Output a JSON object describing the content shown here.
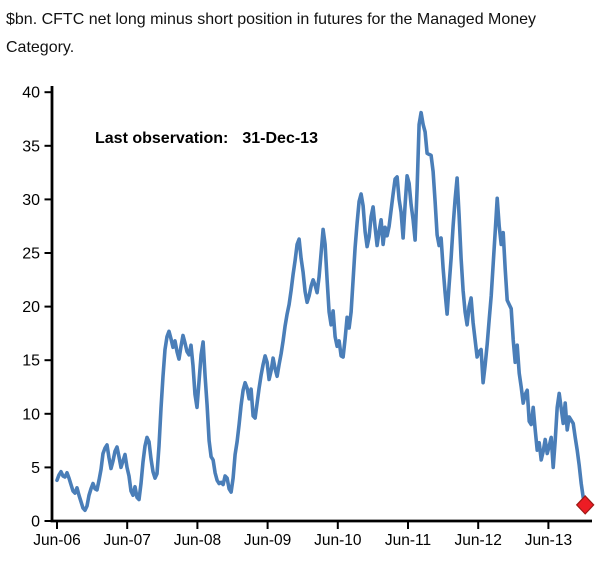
{
  "header": {
    "title_line1": "$bn. CFTC net long minus short position in futures for the Managed Money",
    "title_line2": "Category."
  },
  "annotation": {
    "label": "Last observation:",
    "value": "31-Dec-13"
  },
  "colors": {
    "line": "#4A7EB8",
    "marker_fill": "#ED1C24",
    "marker_stroke": "#9E1A15",
    "axis": "#000000",
    "text": "#000000"
  },
  "chart_data": {
    "type": "line",
    "title": "$bn. CFTC net long minus short position in futures for the Managed Money Category.",
    "xlabel": "",
    "ylabel": "$bn",
    "ylim": [
      0,
      40
    ],
    "y_ticks": [
      0,
      5,
      10,
      15,
      20,
      25,
      30,
      35,
      40
    ],
    "x_tick_labels": [
      "Jun-06",
      "Jun-07",
      "Jun-08",
      "Jun-09",
      "Jun-10",
      "Jun-11",
      "Jun-12",
      "Jun-13"
    ],
    "x_tick_values": [
      2006.42,
      2007.42,
      2008.42,
      2009.42,
      2010.42,
      2011.42,
      2012.42,
      2013.42
    ],
    "grid": false,
    "legend": "none",
    "last_observation": {
      "date": "31-Dec-13",
      "value": 1.5,
      "marker": "red-diamond"
    },
    "series": [
      {
        "name": "CFTC Managed Money net long minus short position ($bn)",
        "color": "#4A7EB8",
        "x_start": 2006.42,
        "x_step": 0.0285,
        "values": [
          3.8,
          4.3,
          4.6,
          4.2,
          4.1,
          4.5,
          4.0,
          3.4,
          2.8,
          2.6,
          3.1,
          2.4,
          1.8,
          1.2,
          1.0,
          1.4,
          2.4,
          3.0,
          3.5,
          3.0,
          2.9,
          3.8,
          4.8,
          6.3,
          6.8,
          7.1,
          5.9,
          4.9,
          5.6,
          6.5,
          6.9,
          6.0,
          5.0,
          5.6,
          6.2,
          5.0,
          4.2,
          2.8,
          2.4,
          3.2,
          2.2,
          2.0,
          3.5,
          5.5,
          7.0,
          7.8,
          7.4,
          5.8,
          4.6,
          4.0,
          4.4,
          7.0,
          10.5,
          13.5,
          16.0,
          17.2,
          17.7,
          17.0,
          16.2,
          16.8,
          15.8,
          15.1,
          16.3,
          17.3,
          16.6,
          15.8,
          15.5,
          16.4,
          14.5,
          11.8,
          10.6,
          13.0,
          15.5,
          16.7,
          13.5,
          10.8,
          7.5,
          6.0,
          5.7,
          4.5,
          3.8,
          3.5,
          3.6,
          3.4,
          4.2,
          4.0,
          3.0,
          2.7,
          4.0,
          6.2,
          7.4,
          9.0,
          10.8,
          12.2,
          12.9,
          12.4,
          11.4,
          12.3,
          9.8,
          9.6,
          11.0,
          12.4,
          13.6,
          14.6,
          15.4,
          14.8,
          13.2,
          14.0,
          15.2,
          14.2,
          13.5,
          14.6,
          15.6,
          16.8,
          18.2,
          19.3,
          20.2,
          21.5,
          23.0,
          24.3,
          25.8,
          26.3,
          24.5,
          23.2,
          21.4,
          20.4,
          21.0,
          21.9,
          22.5,
          22.0,
          21.3,
          22.8,
          25.0,
          27.2,
          25.8,
          22.5,
          19.5,
          18.3,
          19.6,
          17.2,
          16.3,
          16.8,
          15.4,
          15.3,
          17.0,
          19.0,
          18.0,
          19.5,
          22.5,
          25.5,
          27.8,
          29.8,
          30.5,
          29.4,
          27.0,
          25.6,
          26.5,
          28.4,
          29.3,
          27.4,
          25.7,
          27.0,
          28.1,
          25.8,
          27.4,
          26.6,
          27.5,
          29.0,
          30.5,
          31.9,
          32.1,
          30.0,
          28.8,
          26.4,
          29.5,
          32.2,
          31.5,
          29.5,
          28.1,
          26.2,
          31.0,
          37.0,
          38.1,
          37.0,
          36.3,
          34.3,
          34.2,
          34.1,
          32.6,
          29.8,
          26.7,
          25.7,
          26.4,
          23.6,
          21.3,
          19.3,
          22.0,
          24.5,
          27.5,
          30.0,
          32.0,
          28.5,
          24.5,
          21.5,
          19.5,
          18.3,
          20.0,
          20.8,
          18.5,
          16.9,
          15.3,
          15.8,
          16.0,
          12.9,
          14.5,
          16.5,
          18.8,
          21.0,
          24.0,
          27.0,
          30.1,
          27.5,
          25.8,
          26.9,
          23.5,
          20.6,
          20.2,
          19.8,
          16.9,
          14.8,
          16.4,
          13.8,
          12.5,
          11.0,
          11.8,
          12.2,
          9.3,
          9.0,
          10.6,
          8.5,
          6.6,
          7.3,
          5.7,
          6.5,
          7.6,
          6.3,
          7.0,
          7.8,
          5.0,
          7.5,
          10.6,
          11.9,
          10.5,
          9.1,
          11.0,
          8.5,
          9.7,
          9.4,
          9.1,
          7.8,
          6.6,
          5.2,
          3.5,
          2.2,
          1.5
        ]
      }
    ]
  }
}
